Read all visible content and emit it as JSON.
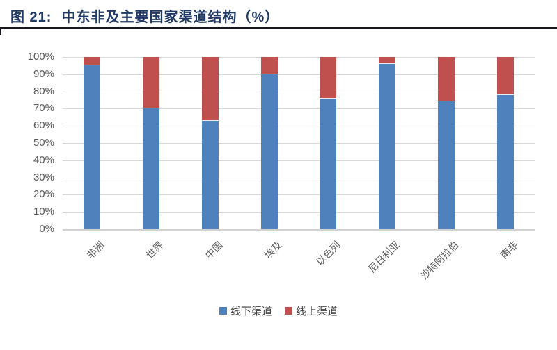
{
  "figure": {
    "label": "图 21:",
    "title": "中东非及主要国家渠道结构（%）"
  },
  "chart_data": {
    "type": "bar",
    "stacked": true,
    "title": "中东非及主要国家渠道结构（%）",
    "categories": [
      "非洲",
      "世界",
      "中国",
      "埃及",
      "以色列",
      "尼日利亚",
      "沙特阿拉伯",
      "南非"
    ],
    "series": [
      {
        "name": "线下渠道",
        "color": "#4F81BD",
        "values": [
          95,
          70,
          63,
          90,
          76,
          96,
          74,
          78
        ]
      },
      {
        "name": "线上渠道",
        "color": "#C0504D",
        "values": [
          5,
          30,
          37,
          10,
          24,
          4,
          26,
          22
        ]
      }
    ],
    "ylim": [
      0,
      100
    ],
    "ytick_step": 10,
    "ytick_suffix": "%",
    "grid": true,
    "legend_position": "bottom"
  },
  "colors": {
    "title": "#1F3864",
    "rule": "#17171F",
    "grid": "#D9D9D9",
    "baseline": "#D2D2D2",
    "segment_divider": "#E8EEF6",
    "axis_text": "#595959",
    "legend_text": "#3F3F3F",
    "background": "#FFFFFF"
  }
}
